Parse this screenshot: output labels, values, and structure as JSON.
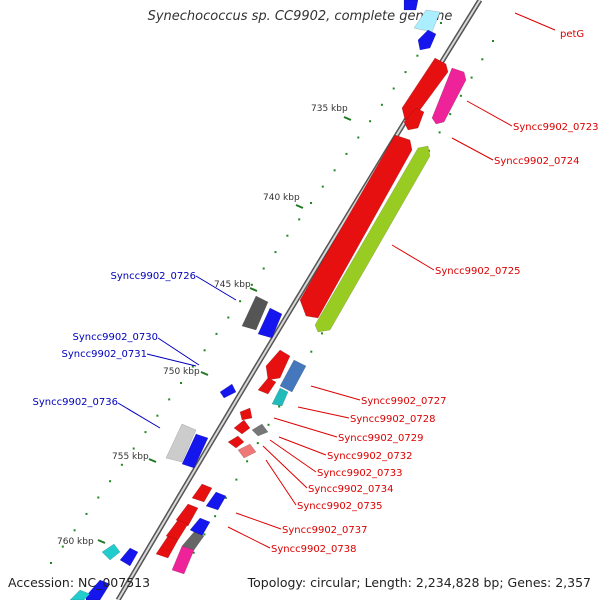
{
  "title": "Synechococcus sp. CC9902, complete genome",
  "footer": {
    "accession": "Accession: NC_007513",
    "summary": "Topology: circular; Length: 2,234,828 bp; Genes: 2,357"
  },
  "colors": {
    "forward_label": "#dd0000",
    "reverse_label": "#0000bb",
    "backbone": "#777777",
    "tick": "#227722",
    "dots": "#228822"
  },
  "scale_labels": [
    "735 kbp",
    "740 kbp",
    "745 kbp",
    "750 kbp",
    "755 kbp",
    "760 kbp"
  ],
  "gene_labels": {
    "forward": [
      "petG",
      "Syncc9902_0723",
      "Syncc9902_0724",
      "Syncc9902_0725",
      "Syncc9902_0727",
      "Syncc9902_0728",
      "Syncc9902_0729",
      "Syncc9902_0732",
      "Syncc9902_0733",
      "Syncc9902_0734",
      "Syncc9902_0735",
      "Syncc9902_0737",
      "Syncc9902_0738"
    ],
    "reverse": [
      "Syncc9902_0726",
      "Syncc9902_0730",
      "Syncc9902_0731",
      "Syncc9902_0736"
    ]
  }
}
